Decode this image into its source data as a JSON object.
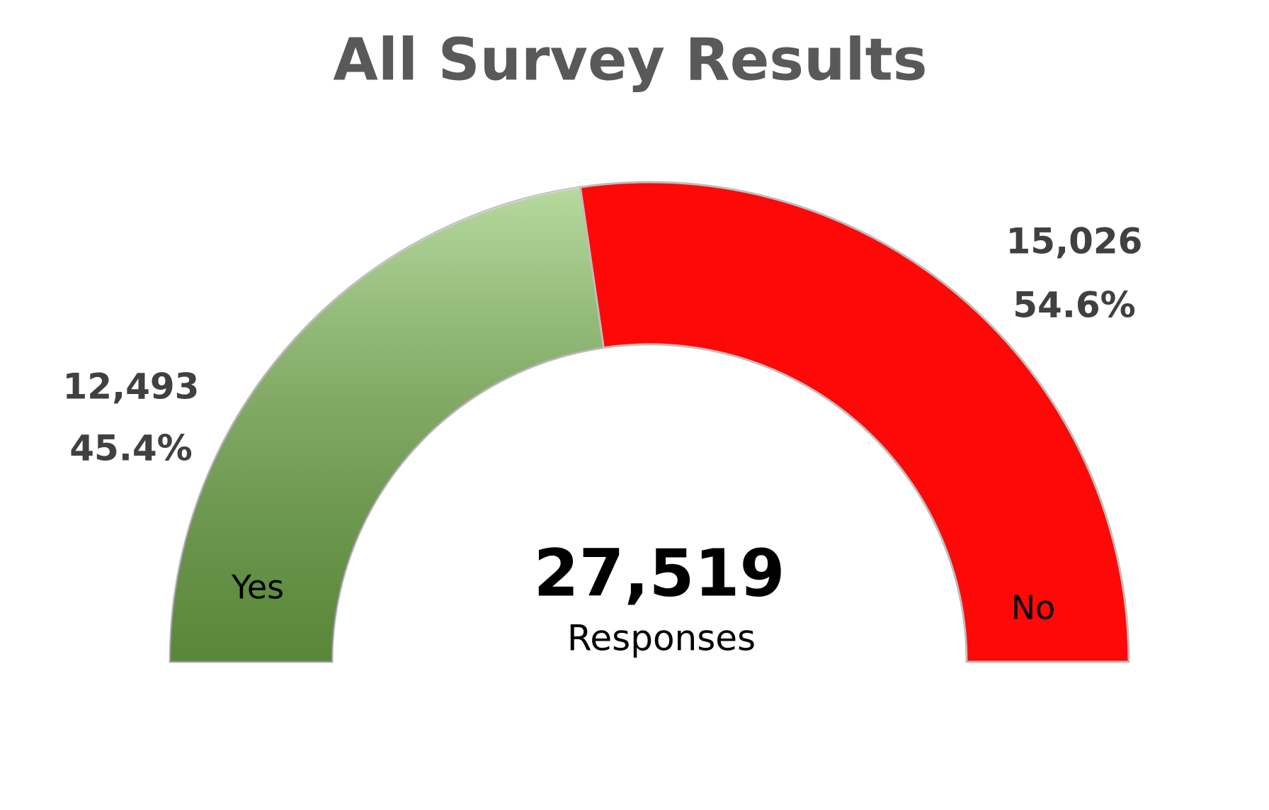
{
  "chart_data": {
    "type": "half-donut",
    "title": "All Survey Results",
    "categories": [
      "Yes",
      "No"
    ],
    "values": [
      12493,
      15026
    ],
    "value_labels": [
      "12,493",
      "15,026"
    ],
    "percentages": [
      45.4,
      54.6
    ],
    "percentage_labels": [
      "45.4%",
      "54.6%"
    ],
    "colors": [
      "#7cbc4f",
      "#ff0808"
    ],
    "total": 27519,
    "total_label": "27,519",
    "total_caption": "Responses"
  }
}
